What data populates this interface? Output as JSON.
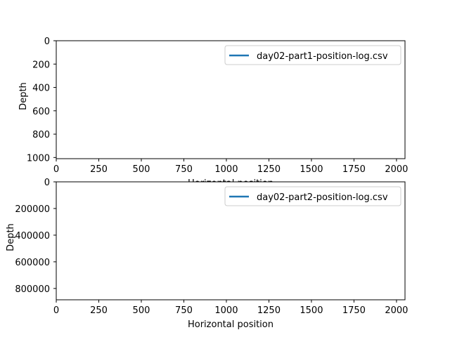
{
  "chart_data": [
    {
      "type": "line",
      "title": "",
      "xlabel": "Horizontal position",
      "ylabel": "Depth",
      "xlim": [
        0,
        2050
      ],
      "ylim": [
        1010,
        0
      ],
      "y_inverted": true,
      "x_ticks": [
        0,
        250,
        500,
        750,
        1000,
        1250,
        1500,
        1750,
        2000
      ],
      "y_ticks": [
        0,
        200,
        400,
        600,
        800,
        1000
      ],
      "legend_position": "top-right",
      "series": [
        {
          "name": "day02-part1-position-log.csv",
          "color": "#1f77b4",
          "x": [],
          "y": []
        }
      ]
    },
    {
      "type": "line",
      "title": "",
      "xlabel": "Horizontal position",
      "ylabel": "Depth",
      "xlim": [
        0,
        2050
      ],
      "ylim": [
        885000,
        0
      ],
      "y_inverted": true,
      "x_ticks": [
        0,
        250,
        500,
        750,
        1000,
        1250,
        1500,
        1750,
        2000
      ],
      "y_ticks": [
        0,
        200000,
        400000,
        600000,
        800000
      ],
      "legend_position": "top-right",
      "series": [
        {
          "name": "day02-part2-position-log.csv",
          "color": "#1f77b4",
          "x": [],
          "y": []
        }
      ]
    }
  ]
}
